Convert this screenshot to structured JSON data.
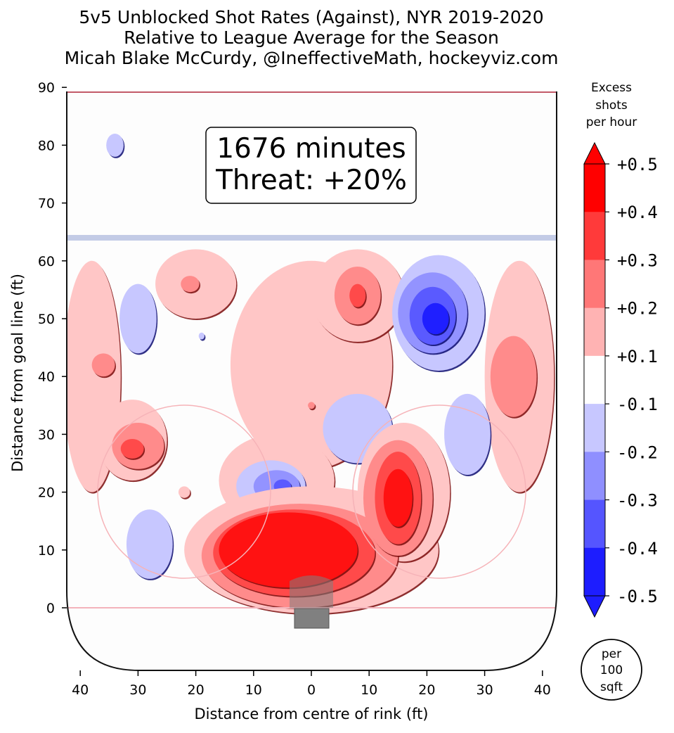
{
  "title": {
    "line1": "5v5 Unblocked Shot Rates (Against), NYR 2019-2020",
    "line2": "Relative to League Average for the Season",
    "line3": "Micah Blake McCurdy, @IneffectiveMath, hockeyviz.com"
  },
  "info_box": {
    "minutes": "1676 minutes",
    "threat": "Threat: +20%"
  },
  "chart_data": {
    "type": "heatmap",
    "title": "5v5 Unblocked Shot Rates (Against), NYR 2019-2020",
    "xlabel": "Distance from centre of rink (ft)",
    "ylabel": "Distance from goal line (ft)",
    "xlim": [
      -42,
      42
    ],
    "ylim": [
      -11,
      90
    ],
    "x_ticks": [
      -40,
      -30,
      -20,
      -10,
      0,
      10,
      20,
      30,
      40
    ],
    "x_tick_labels": [
      "40",
      "30",
      "20",
      "10",
      "0",
      "10",
      "20",
      "30",
      "40"
    ],
    "y_ticks": [
      0,
      10,
      20,
      30,
      40,
      50,
      60,
      70,
      80,
      90
    ],
    "y_tick_labels": [
      "0",
      "10",
      "20",
      "30",
      "40",
      "50",
      "60",
      "70",
      "80",
      "90"
    ],
    "colorbar": {
      "title_lines": [
        "Excess",
        "shots",
        "per hour"
      ],
      "levels": [
        -0.5,
        -0.4,
        -0.3,
        -0.2,
        -0.1,
        0.1,
        0.2,
        0.3,
        0.4,
        0.5
      ],
      "labels": [
        "+0.5",
        "+0.4",
        "+0.3",
        "+0.2",
        "+0.1",
        "-0.1",
        "-0.2",
        "-0.3",
        "-0.4",
        "-0.5"
      ],
      "colors_top_to_bottom": [
        "#ff0000",
        "#ff3a3a",
        "#ff7777",
        "#ffb3b3",
        "#ffffff",
        "#c7c7ff",
        "#8f8fff",
        "#5555ff",
        "#1d1dff"
      ]
    },
    "unit_note_lines": [
      "per",
      "100",
      "sqft"
    ],
    "blobs": [
      {
        "cx": -34,
        "cy": 80,
        "rx": 1.5,
        "ry": 2,
        "level": -0.15
      },
      {
        "cx": -30,
        "cy": 50,
        "rx": 3.2,
        "ry": 6,
        "level": -0.15
      },
      {
        "cx": -19,
        "cy": 47,
        "rx": 0.5,
        "ry": 0.6,
        "level": -0.15
      },
      {
        "cx": -38,
        "cy": 40,
        "rx": 5,
        "ry": 20,
        "level": 0.15
      },
      {
        "cx": -36,
        "cy": 42,
        "rx": 2,
        "ry": 2,
        "level": 0.25
      },
      {
        "cx": -31,
        "cy": 29,
        "rx": 6,
        "ry": 7,
        "level": 0.15
      },
      {
        "cx": -30,
        "cy": 28,
        "rx": 4.5,
        "ry": 4,
        "level": 0.25
      },
      {
        "cx": -31,
        "cy": 27.5,
        "rx": 2,
        "ry": 1.7,
        "level": 0.35
      },
      {
        "cx": -20,
        "cy": 56,
        "rx": 7,
        "ry": 6,
        "level": 0.15
      },
      {
        "cx": -21,
        "cy": 56,
        "rx": 1.6,
        "ry": 1.4,
        "level": 0.25
      },
      {
        "cx": -22,
        "cy": 20,
        "rx": 1,
        "ry": 1,
        "level": 0.15
      },
      {
        "cx": 0,
        "cy": 42,
        "rx": 14,
        "ry": 18,
        "level": 0.15
      },
      {
        "cx": 8,
        "cy": 54,
        "rx": 8,
        "ry": 8,
        "level": 0.15
      },
      {
        "cx": 8,
        "cy": 54,
        "rx": 4,
        "ry": 5,
        "level": 0.25
      },
      {
        "cx": 8,
        "cy": 54,
        "rx": 1.4,
        "ry": 2,
        "level": 0.35
      },
      {
        "cx": 0,
        "cy": 35,
        "rx": 0.6,
        "ry": 0.6,
        "level": 0.25
      },
      {
        "cx": 36,
        "cy": 40,
        "rx": 6,
        "ry": 20,
        "level": 0.15
      },
      {
        "cx": 35,
        "cy": 40,
        "rx": 4,
        "ry": 7,
        "level": 0.25
      },
      {
        "cx": 22,
        "cy": 51,
        "rx": 8,
        "ry": 10,
        "level": -0.15
      },
      {
        "cx": 21,
        "cy": 51,
        "rx": 6,
        "ry": 7,
        "level": -0.25
      },
      {
        "cx": 21,
        "cy": 50.5,
        "rx": 4,
        "ry": 5,
        "level": -0.35
      },
      {
        "cx": 21.5,
        "cy": 50,
        "rx": 2.3,
        "ry": 2.7,
        "level": -0.45
      },
      {
        "cx": 27,
        "cy": 30,
        "rx": 4,
        "ry": 7,
        "level": -0.15
      },
      {
        "cx": -28,
        "cy": 11,
        "rx": 4,
        "ry": 6,
        "level": -0.15
      },
      {
        "cx": -6,
        "cy": 22,
        "rx": 10,
        "ry": 8,
        "level": 0.15
      },
      {
        "cx": 8,
        "cy": 31,
        "rx": 6,
        "ry": 6,
        "level": -0.15
      },
      {
        "cx": -7,
        "cy": 21,
        "rx": 6,
        "ry": 4.5,
        "level": -0.15
      },
      {
        "cx": -6,
        "cy": 21,
        "rx": 4,
        "ry": 2.8,
        "level": -0.25
      },
      {
        "cx": -5,
        "cy": 21,
        "rx": 1.5,
        "ry": 1.2,
        "level": -0.35
      },
      {
        "cx": 0,
        "cy": 10,
        "rx": 22,
        "ry": 11,
        "level": 0.15
      },
      {
        "cx": 16,
        "cy": 20,
        "rx": 8,
        "ry": 12,
        "level": 0.15
      },
      {
        "cx": -2,
        "cy": 9,
        "rx": 17,
        "ry": 9,
        "level": 0.25
      },
      {
        "cx": 15,
        "cy": 19,
        "rx": 6,
        "ry": 10,
        "level": 0.25
      },
      {
        "cx": -3,
        "cy": 9.5,
        "rx": 14,
        "ry": 7.5,
        "level": 0.35
      },
      {
        "cx": 15,
        "cy": 19,
        "rx": 4,
        "ry": 8,
        "level": 0.35
      },
      {
        "cx": -4,
        "cy": 10,
        "rx": 12,
        "ry": 6.5,
        "level": 0.45
      },
      {
        "cx": 15,
        "cy": 19,
        "rx": 2.5,
        "ry": 5,
        "level": 0.45
      }
    ]
  }
}
